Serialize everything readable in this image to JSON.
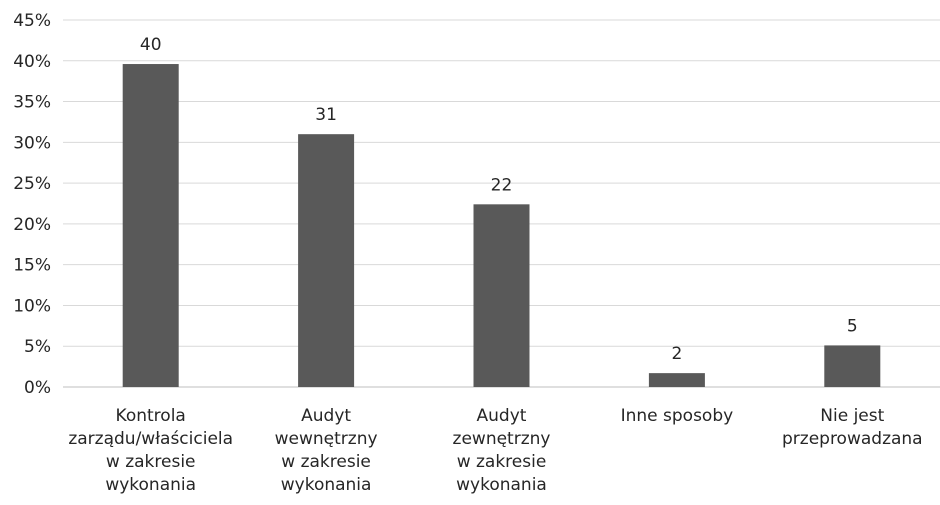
{
  "chart_data": {
    "type": "bar",
    "title": "",
    "xlabel": "",
    "ylabel": "",
    "ylim": [
      0,
      45
    ],
    "y_tick_format": "percent",
    "y_ticks": [
      "0%",
      "5%",
      "10%",
      "15%",
      "20%",
      "25%",
      "30%",
      "35%",
      "40%",
      "45%"
    ],
    "grid": true,
    "legend": "none",
    "bar_color": "#595959",
    "categories": [
      [
        "Kontrola",
        "zarządu/właściciela",
        "w zakresie",
        "wykonania"
      ],
      [
        "Audyt",
        "wewnętrzny",
        "w zakresie",
        "wykonania"
      ],
      [
        "Audyt",
        "zewnętrzny",
        "w zakresie",
        "wykonania"
      ],
      [
        "Inne sposoby"
      ],
      [
        "Nie jest",
        "przeprowadzana"
      ]
    ],
    "values": [
      39.6,
      31.0,
      22.4,
      1.7,
      5.1
    ],
    "data_labels": [
      "40",
      "31",
      "22",
      "2",
      "5"
    ]
  }
}
